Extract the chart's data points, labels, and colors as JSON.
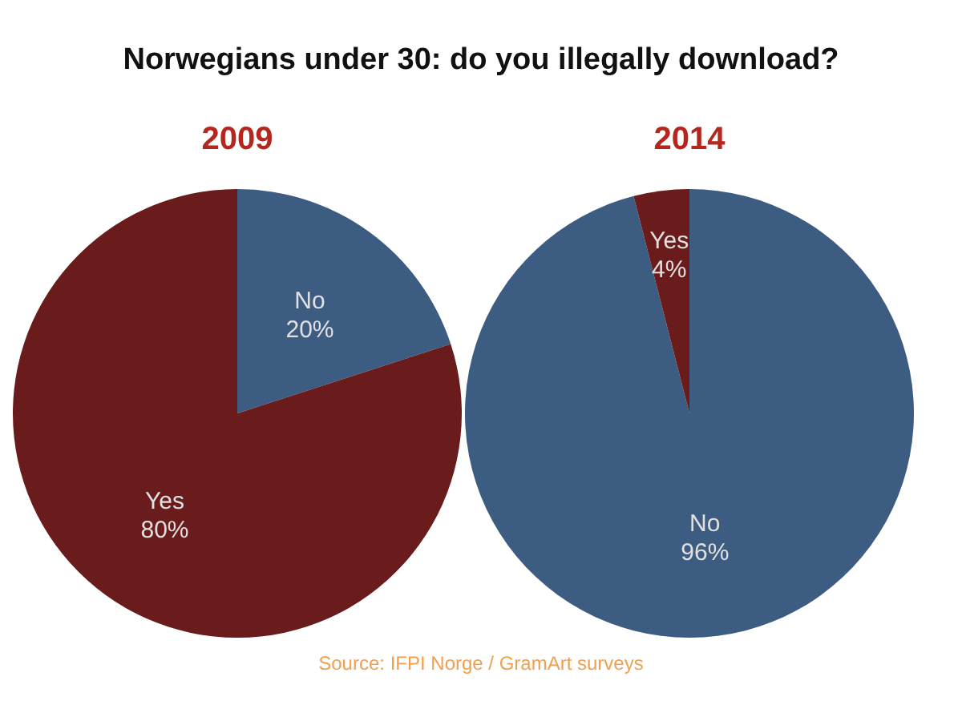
{
  "chart_data": [
    {
      "type": "pie",
      "title": "2009",
      "categories": [
        "No",
        "Yes"
      ],
      "values": [
        20,
        80
      ],
      "colors": [
        "#3d5c82",
        "#6a1c1c"
      ],
      "value_labels": [
        "20%",
        "80%"
      ],
      "annotations": [
        "Norwegians under 30: do you illegally download?",
        "Source:  IFPI Norge / GramArt surveys"
      ]
    },
    {
      "type": "pie",
      "title": "2014",
      "categories": [
        "No",
        "Yes"
      ],
      "values": [
        96,
        4
      ],
      "colors": [
        "#3d5c82",
        "#6a1c1c"
      ],
      "value_labels": [
        "96%",
        "4%"
      ]
    }
  ]
}
